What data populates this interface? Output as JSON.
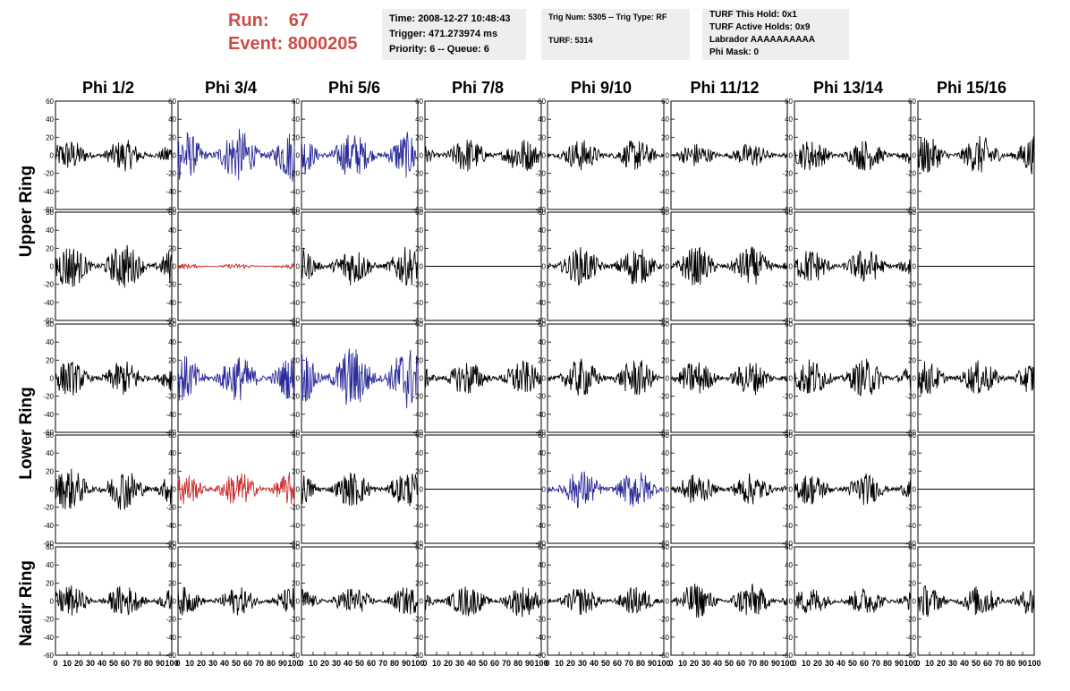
{
  "header": {
    "run_label": "Run:",
    "run_value": "67",
    "event_label": "Event:",
    "event_value": "8000205"
  },
  "info_time": {
    "time": "Time: 2008-12-27 10:48:43",
    "trigger": "Trigger: 471.273974 ms",
    "priority": "Priority: 6 -- Queue: 6"
  },
  "info_trig": {
    "trig": "Trig Num: 5305 -- Trig Type: RF",
    "turf": "TURF: 5314"
  },
  "info_turf": {
    "hold": "TURF This Hold: 0x1",
    "active": "TURF Active Holds: 0x9",
    "labrador": "Labrador AAAAAAAAAA",
    "phimask": "Phi Mask: 0"
  },
  "columns": [
    "Phi 1/2",
    "Phi 3/4",
    "Phi 5/6",
    "Phi 7/8",
    "Phi 9/10",
    "Phi 11/12",
    "Phi 13/14",
    "Phi 15/16"
  ],
  "rings": [
    "Upper Ring",
    "Lower Ring",
    "Nadir Ring"
  ],
  "colors": {
    "black": "#000000",
    "blue": "#2b2b9a",
    "red": "#cc2a2a",
    "accent": "#cd4b45"
  },
  "chart_data": {
    "type": "line",
    "description_axes": "waveform grid",
    "xlim": [
      0,
      100
    ],
    "ylim": [
      -60,
      60
    ],
    "y_ticks": [
      -60,
      -40,
      -20,
      0,
      20,
      40,
      60
    ],
    "x_ticks": [
      0,
      10,
      20,
      30,
      40,
      50,
      60,
      70,
      80,
      90,
      100
    ],
    "rows": [
      {
        "ring": "Upper Ring",
        "panels": [
          {
            "color": "black",
            "amp": 18
          },
          {
            "color": "blue",
            "amp": 30
          },
          {
            "color": "blue",
            "amp": 26
          },
          {
            "color": "black",
            "amp": 20
          },
          {
            "color": "black",
            "amp": 18
          },
          {
            "color": "black",
            "amp": 14
          },
          {
            "color": "black",
            "amp": 18
          },
          {
            "color": "black",
            "amp": 22
          }
        ]
      },
      {
        "ring": "Upper Ring",
        "panels": [
          {
            "color": "black",
            "amp": 26
          },
          {
            "color": "red",
            "amp": 3
          },
          {
            "color": "black",
            "amp": 22
          },
          {
            "color": "black",
            "amp": 0
          },
          {
            "color": "black",
            "amp": 22
          },
          {
            "color": "black",
            "amp": 22
          },
          {
            "color": "black",
            "amp": 20
          },
          {
            "color": "black",
            "amp": 0
          }
        ]
      },
      {
        "ring": "Lower Ring",
        "panels": [
          {
            "color": "black",
            "amp": 20
          },
          {
            "color": "blue",
            "amp": 26
          },
          {
            "color": "blue",
            "amp": 36
          },
          {
            "color": "black",
            "amp": 20
          },
          {
            "color": "black",
            "amp": 22
          },
          {
            "color": "black",
            "amp": 20
          },
          {
            "color": "black",
            "amp": 22
          },
          {
            "color": "black",
            "amp": 20
          }
        ]
      },
      {
        "ring": "Lower Ring",
        "panels": [
          {
            "color": "black",
            "amp": 24
          },
          {
            "color": "red",
            "amp": 20
          },
          {
            "color": "black",
            "amp": 20
          },
          {
            "color": "black",
            "amp": 0
          },
          {
            "color": "blue",
            "amp": 22
          },
          {
            "color": "black",
            "amp": 18
          },
          {
            "color": "black",
            "amp": 18
          },
          {
            "color": "black",
            "amp": 0
          }
        ]
      },
      {
        "ring": "Nadir Ring",
        "panels": [
          {
            "color": "black",
            "amp": 18
          },
          {
            "color": "black",
            "amp": 16
          },
          {
            "color": "black",
            "amp": 16
          },
          {
            "color": "black",
            "amp": 18
          },
          {
            "color": "black",
            "amp": 16
          },
          {
            "color": "black",
            "amp": 20
          },
          {
            "color": "black",
            "amp": 16
          },
          {
            "color": "black",
            "amp": 18
          }
        ]
      }
    ]
  }
}
